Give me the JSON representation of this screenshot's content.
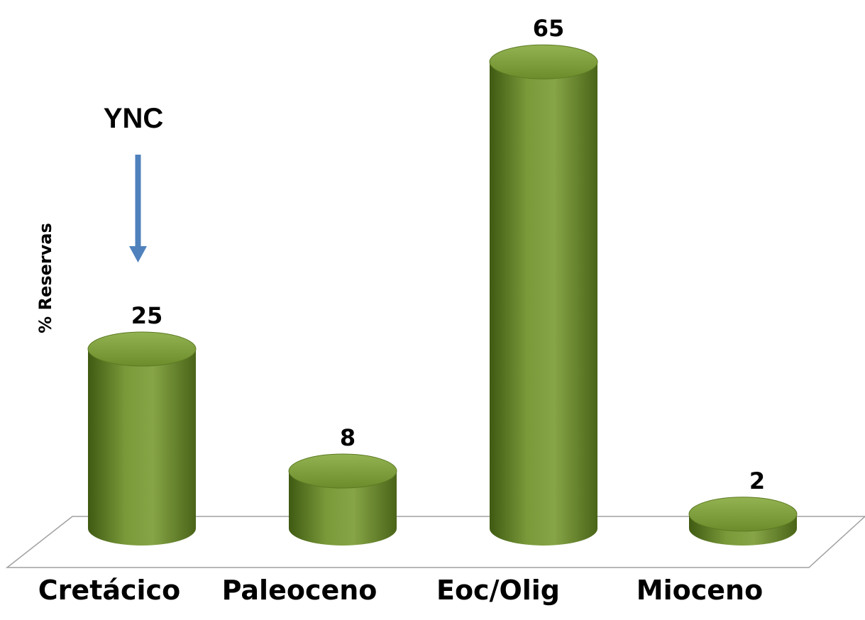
{
  "chart_data": {
    "type": "bar",
    "style": "3d-cylinder",
    "categories": [
      "Cretácico",
      "Paleoceno",
      "Eoc/Olig",
      "Mioceno"
    ],
    "values": [
      25,
      8,
      65,
      2
    ],
    "data_labels": [
      "25",
      "8",
      "65",
      "2"
    ],
    "title": "",
    "xlabel": "",
    "ylabel": "% Reservas",
    "ylim": [
      0,
      65
    ],
    "grid": false,
    "legend": "none",
    "annotation": {
      "text": "YNC",
      "points_to": "Cretácico"
    },
    "colors": {
      "bar_dark": "#4a6418",
      "bar_mid": "#7a9a3a",
      "bar_light": "#8fae4c",
      "arrow": "#4f81bd",
      "floor_line": "#a0a0a0"
    }
  }
}
